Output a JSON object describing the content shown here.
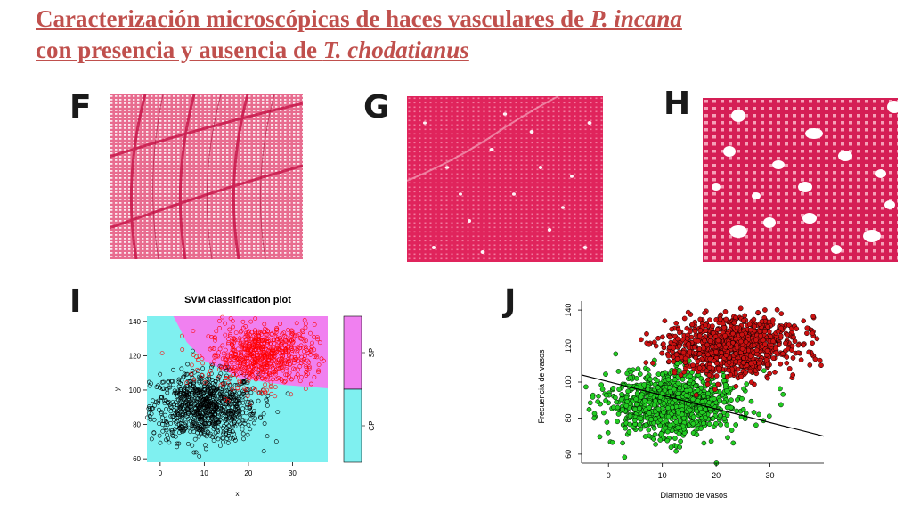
{
  "title": {
    "line1_prefix": "Caracterización microscópicas de haces vasculares de ",
    "line1_species": "P. incana",
    "line2_prefix": "con presencia y ausencia de ",
    "line2_species": "T. chodatianus"
  },
  "panels": {
    "F": "F",
    "G": "G",
    "H": "H",
    "I": "I",
    "J": "J"
  },
  "colors": {
    "title": "#c0504d",
    "tissue": "#d8245a",
    "svm_cyan": "#7ff0f0",
    "svm_magenta": "#f080f0",
    "cp_points": "#000000",
    "sp_points": "#ff0000",
    "green_points": "#22cc22",
    "red_points": "#cc1111"
  },
  "chart_data": [
    {
      "type": "scatter",
      "title": "SVM classification plot",
      "xlabel": "x",
      "ylabel": "y",
      "xlim": [
        -3,
        38
      ],
      "ylim": [
        58,
        143
      ],
      "xticks": [
        0,
        10,
        20,
        30
      ],
      "yticks": [
        60,
        80,
        100,
        120,
        140
      ],
      "legend": "right",
      "classes": [
        "SP",
        "CP"
      ],
      "series": [
        {
          "name": "CP",
          "center_x": 10,
          "center_y": 90,
          "sd_x": 6,
          "sd_y": 10,
          "n": 900
        },
        {
          "name": "SP",
          "center_x": 23,
          "center_y": 120,
          "sd_x": 6,
          "sd_y": 9,
          "n": 700
        }
      ]
    },
    {
      "type": "scatter",
      "xlabel": "Diametro de vasos",
      "ylabel": "Frecuencia de vasos",
      "xlim": [
        -5,
        40
      ],
      "ylim": [
        55,
        145
      ],
      "xticks": [
        0,
        10,
        20,
        30
      ],
      "yticks": [
        60,
        80,
        100,
        120,
        140
      ],
      "series": [
        {
          "center_x": 12,
          "center_y": 88,
          "sd_x": 6,
          "sd_y": 9,
          "n": 1000
        },
        {
          "center_x": 23,
          "center_y": 120,
          "sd_x": 6,
          "sd_y": 8,
          "n": 1000
        }
      ],
      "trendline": {
        "x": [
          -5,
          40
        ],
        "y": [
          104,
          70
        ]
      }
    }
  ]
}
